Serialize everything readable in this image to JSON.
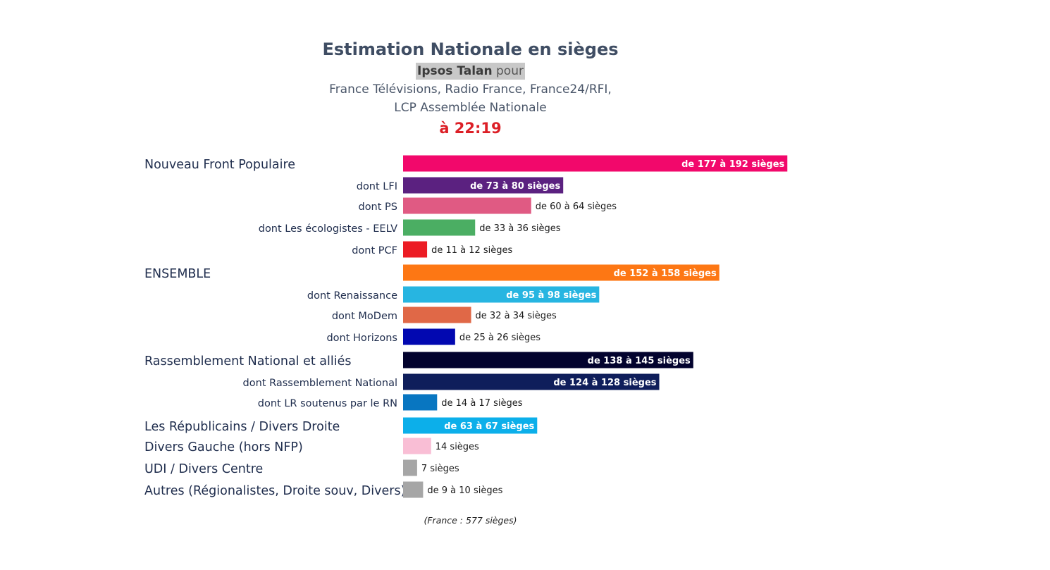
{
  "header": {
    "title": "Estimation Nationale en sièges",
    "institute": "Ipsos Talan",
    "pour": "pour",
    "clients_line1": "France Télévisions, Radio France, France24/RFI,",
    "clients_line2": "LCP Assemblée Nationale",
    "time": "à 22:19"
  },
  "footnote": "(France : 577 sièges)",
  "chart_data": {
    "type": "bar",
    "orientation": "horizontal",
    "title": "Estimation Nationale en sièges",
    "total_seats": 577,
    "categories": [
      "Nouveau Front Populaire",
      "dont LFI",
      "dont PS",
      "dont Les écologistes - EELV",
      "dont PCF",
      "ENSEMBLE",
      "dont Renaissance",
      "dont MoDem",
      "dont Horizons",
      "Rassemblement National et alliés",
      "dont Rassemblement National",
      "dont LR soutenus par le RN",
      "Les Républicains / Divers Droite",
      "Divers Gauche (hors NFP)",
      "UDI / Divers Centre",
      "Autres (Régionalistes, Droite souv, Divers)"
    ],
    "series": [
      {
        "values_min": [
          177,
          73,
          60,
          33,
          11,
          152,
          95,
          32,
          25,
          138,
          124,
          14,
          63,
          14,
          7,
          9
        ],
        "values_max": [
          192,
          80,
          64,
          36,
          12,
          158,
          98,
          34,
          26,
          145,
          128,
          17,
          67,
          14,
          7,
          10
        ]
      }
    ],
    "data_labels": [
      "de 177 à 192 sièges",
      "de 73 à 80 sièges",
      "de 60 à 64 sièges",
      "de 33 à 36 sièges",
      "de 11 à 12 sièges",
      "de 152 à 158 sièges",
      "de 95 à 98 sièges",
      "de 32 à 34 sièges",
      "de 25 à 26 sièges",
      "de 138 à 145 sièges",
      "de 124 à 128 sièges",
      "de 14 à 17 sièges",
      "de 63 à 67 sièges",
      "14 sièges",
      "7 sièges",
      "de 9 à 10 sièges"
    ],
    "is_main_group": [
      true,
      false,
      false,
      false,
      false,
      true,
      false,
      false,
      false,
      true,
      false,
      false,
      true,
      true,
      true,
      true
    ],
    "colors": [
      "#f2086b",
      "#5b2180",
      "#e05a83",
      "#4bae63",
      "#ec1c24",
      "#fd7714",
      "#27b5e1",
      "#e06847",
      "#0208b1",
      "#03032e",
      "#0f1e5b",
      "#0876c1",
      "#0cafea",
      "#f9bed5",
      "#a6a6a6",
      "#a6a6a6"
    ],
    "label_inside": [
      true,
      true,
      false,
      false,
      false,
      true,
      true,
      false,
      false,
      true,
      true,
      false,
      true,
      false,
      false,
      false
    ],
    "legend": "none",
    "grid": false
  }
}
